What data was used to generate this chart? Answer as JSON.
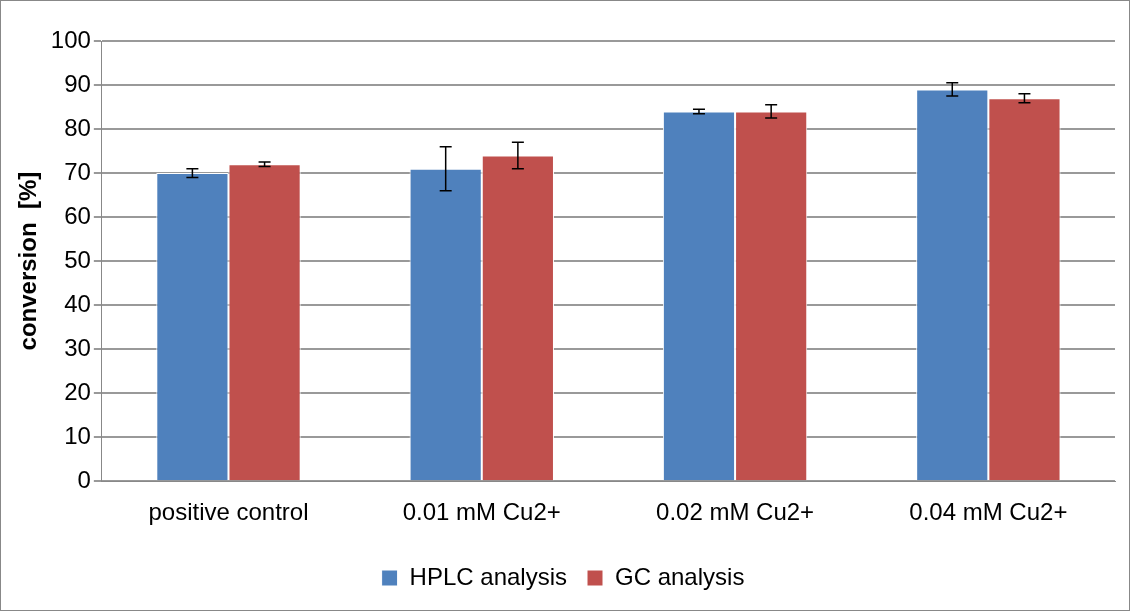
{
  "chart_data": {
    "type": "bar",
    "ylabel": "conversion  [%]",
    "categories": [
      "positive control",
      "0.01 mM Cu2+",
      "0.02 mM Cu2+",
      "0.04 mM Cu2+"
    ],
    "series": [
      {
        "name": "HPLC analysis",
        "color": "#4f81bd",
        "values": [
          70,
          71,
          84,
          89
        ],
        "errors": [
          1,
          5,
          0.5,
          1.5
        ]
      },
      {
        "name": "GC analysis",
        "color": "#c0504d",
        "values": [
          72,
          74,
          84,
          87
        ],
        "errors": [
          0.5,
          3,
          1.5,
          1
        ]
      }
    ],
    "ylim": [
      0,
      100
    ],
    "yticks": [
      0,
      10,
      20,
      30,
      40,
      50,
      60,
      70,
      80,
      90,
      100
    ],
    "grid": "y",
    "legend": "bottom"
  }
}
